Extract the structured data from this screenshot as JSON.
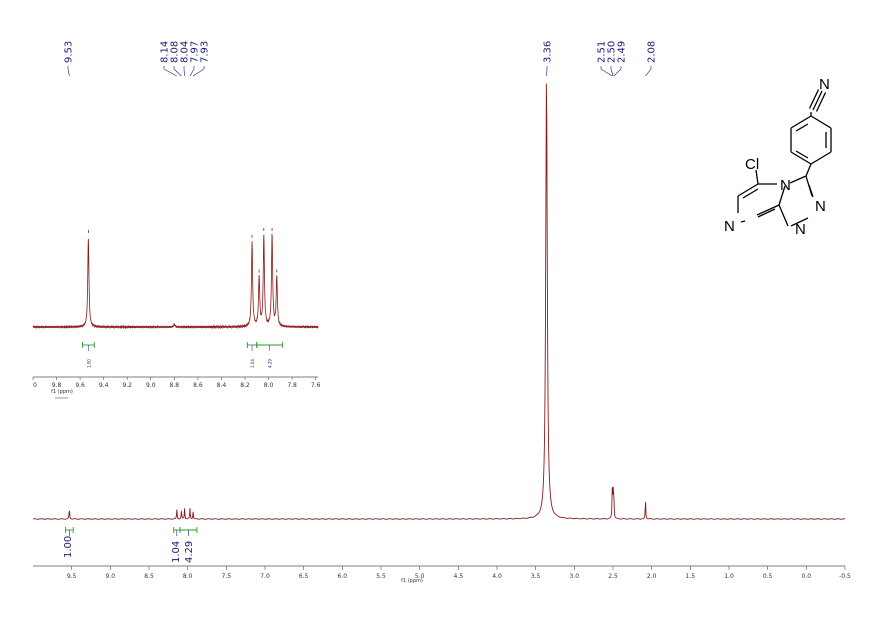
{
  "chart_data": {
    "type": "line",
    "xlabel": "f1 (ppm)",
    "xlim": [
      10.0,
      -0.5
    ],
    "x_ticks": [
      "9.5",
      "9.0",
      "8.5",
      "8.0",
      "7.5",
      "7.0",
      "6.5",
      "6.0",
      "5.5",
      "5.0",
      "4.5",
      "4.0",
      "3.5",
      "3.0",
      "2.5",
      "2.0",
      "1.5",
      "1.0",
      "0.5",
      "0.0",
      "-0.5"
    ],
    "peaks": [
      {
        "ppm": 9.53,
        "height": 0.025
      },
      {
        "ppm": 8.14,
        "height": 0.022
      },
      {
        "ppm": 8.08,
        "height": 0.018
      },
      {
        "ppm": 8.04,
        "height": 0.024
      },
      {
        "ppm": 7.97,
        "height": 0.024
      },
      {
        "ppm": 7.93,
        "height": 0.017
      },
      {
        "ppm": 3.36,
        "height": 1.0
      },
      {
        "ppm": 2.51,
        "height": 0.06
      },
      {
        "ppm": 2.5,
        "height": 0.065
      },
      {
        "ppm": 2.49,
        "height": 0.06
      },
      {
        "ppm": 2.08,
        "height": 0.045
      }
    ],
    "peak_labels": [
      "9.53",
      "8.14",
      "8.08",
      "8.04",
      "7.97",
      "7.93",
      "3.36",
      "2.51",
      "2.50",
      "2.49",
      "2.08"
    ],
    "integrals": [
      {
        "from": 9.58,
        "to": 9.48,
        "label": "1.00"
      },
      {
        "from": 8.18,
        "to": 8.1,
        "label": "1.04"
      },
      {
        "from": 8.1,
        "to": 7.88,
        "label": "4.29"
      }
    ],
    "inset": {
      "xlabel": "f1 (ppm)",
      "xlim": [
        10.0,
        7.58
      ],
      "x_ticks": [
        "0",
        "9.8",
        "9.6",
        "9.4",
        "9.2",
        "9.0",
        "8.8",
        "8.6",
        "8.4",
        "8.2",
        "8.0",
        "7.8",
        "7.6"
      ],
      "peaks": [
        {
          "ppm": 9.53,
          "height": 0.9
        },
        {
          "ppm": 8.14,
          "height": 0.85
        },
        {
          "ppm": 8.08,
          "height": 0.5
        },
        {
          "ppm": 8.04,
          "height": 0.92
        },
        {
          "ppm": 7.97,
          "height": 0.92
        },
        {
          "ppm": 7.93,
          "height": 0.5
        },
        {
          "ppm": 8.8,
          "height": 0.03
        }
      ],
      "integrals": [
        {
          "from": 9.58,
          "to": 9.48,
          "label": "1.00"
        },
        {
          "from": 8.18,
          "to": 8.1,
          "label": "1.04"
        },
        {
          "from": 8.1,
          "to": 7.88,
          "label": "4.29"
        }
      ]
    }
  },
  "structure": {
    "atoms": {
      "n1": "N",
      "n2": "N",
      "n3": "N",
      "n4": "N",
      "n5": "N",
      "cl": "Cl"
    }
  },
  "colors": {
    "trace": "#8b1a1a",
    "integral": "#2a9a2a",
    "label": "#1a1a7a"
  }
}
